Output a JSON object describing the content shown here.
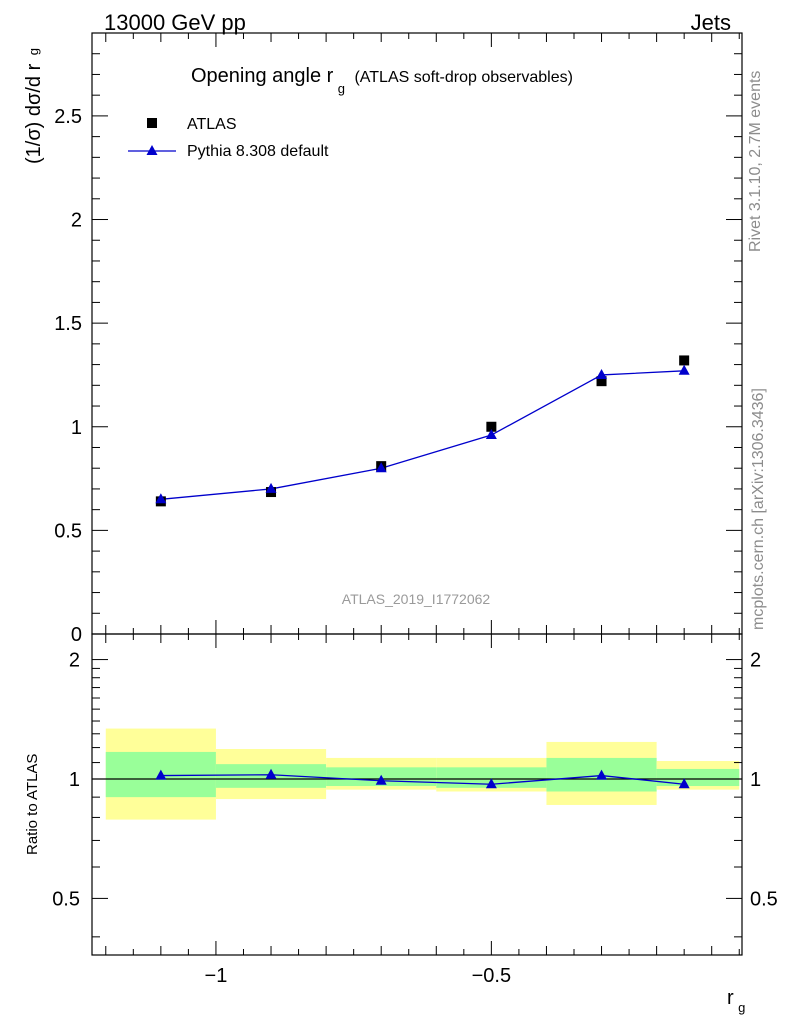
{
  "header": {
    "left": "13000 GeV pp",
    "right": "Jets"
  },
  "side_labels": {
    "rivet": "Rivet 3.1.10,  2.7M events",
    "mcplots": "mcplots.cern.ch [arXiv:1306.3436]"
  },
  "plot_title": {
    "main": "Opening angle r",
    "sub": "g",
    "rest": "(ATLAS soft-drop observables)"
  },
  "watermark": "ATLAS_2019_I1772062",
  "ylabel_top": {
    "main": "(1/σ) dσ/d r",
    "sub": "g"
  },
  "ylabel_bottom": "Ratio to ATLAS",
  "xlabel": {
    "main": "r",
    "sub": "g"
  },
  "legend": [
    {
      "label": "ATLAS",
      "marker": "square",
      "color": "#000000"
    },
    {
      "label": "Pythia 8.308 default",
      "marker": "triangle",
      "color": "#0000cc"
    }
  ],
  "chart_data": [
    {
      "type": "scatter",
      "panel": "main",
      "xlim": [
        -1.225,
        -0.045
      ],
      "ylim": [
        0,
        2.9
      ],
      "yticks": [
        0,
        0.5,
        1,
        1.5,
        2,
        2.5
      ],
      "ytick_labels": [
        "0",
        "0.5",
        "1",
        "1.5",
        "2",
        "2.5"
      ],
      "series": [
        {
          "name": "ATLAS",
          "x": [
            -1.1,
            -0.9,
            -0.7,
            -0.5,
            -0.3,
            -0.15
          ],
          "y": [
            0.64,
            0.685,
            0.81,
            1.0,
            1.22,
            1.32
          ]
        },
        {
          "name": "Pythia 8.308 default",
          "x": [
            -1.1,
            -0.9,
            -0.7,
            -0.5,
            -0.3,
            -0.15
          ],
          "y": [
            0.65,
            0.7,
            0.8,
            0.96,
            1.25,
            1.27
          ]
        }
      ]
    },
    {
      "type": "line",
      "panel": "ratio",
      "xlim": [
        -1.225,
        -0.045
      ],
      "ylim": [
        0.36,
        2.32
      ],
      "yticks": [
        0.5,
        1,
        2
      ],
      "ytick_labels": [
        "0.5",
        "1",
        "2"
      ],
      "xticks": [
        -1,
        -0.5
      ],
      "xtick_labels": [
        "−1",
        "−0.5"
      ],
      "bins": [
        [
          -1.2,
          -1.0
        ],
        [
          -1.0,
          -0.8
        ],
        [
          -0.8,
          -0.6
        ],
        [
          -0.6,
          -0.4
        ],
        [
          -0.4,
          -0.2
        ],
        [
          -0.2,
          -0.05
        ]
      ],
      "band_yellow": [
        [
          0.79,
          1.34
        ],
        [
          0.89,
          1.19
        ],
        [
          0.94,
          1.13
        ],
        [
          0.93,
          1.13
        ],
        [
          0.86,
          1.24
        ],
        [
          0.94,
          1.11
        ]
      ],
      "band_green": [
        [
          0.9,
          1.17
        ],
        [
          0.95,
          1.09
        ],
        [
          0.96,
          1.07
        ],
        [
          0.95,
          1.07
        ],
        [
          0.93,
          1.13
        ],
        [
          0.96,
          1.06
        ]
      ],
      "series": [
        {
          "name": "Pythia 8.308 default",
          "x": [
            -1.1,
            -0.9,
            -0.7,
            -0.5,
            -0.3,
            -0.15
          ],
          "y": [
            1.02,
            1.025,
            0.99,
            0.97,
            1.02,
            0.97
          ]
        }
      ]
    }
  ]
}
